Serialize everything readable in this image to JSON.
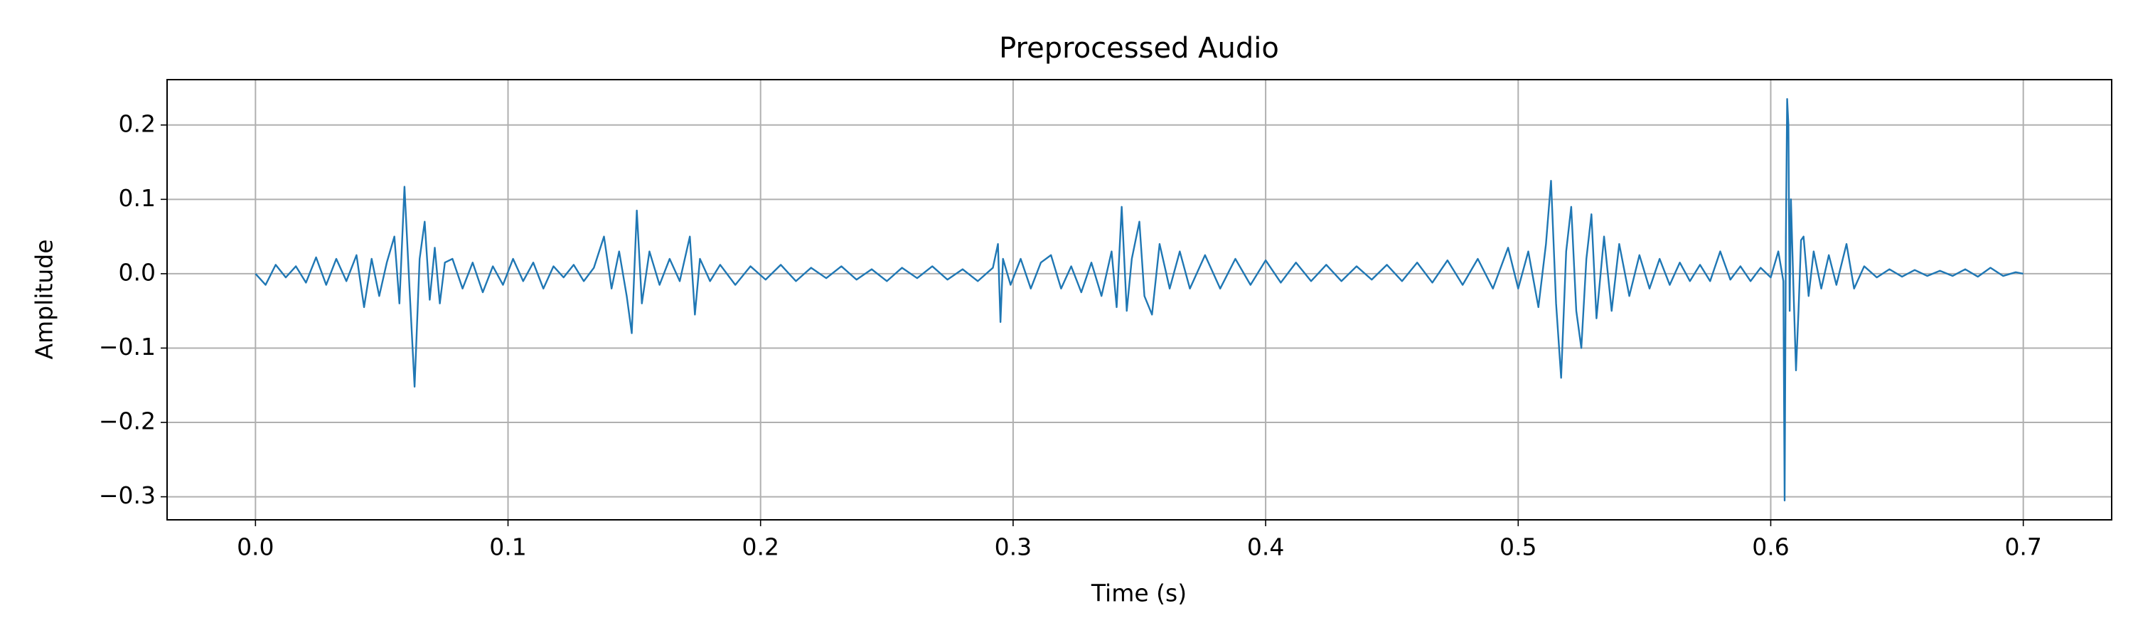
{
  "chart_data": {
    "type": "line",
    "title": "Preprocessed Audio",
    "xlabel": "Time (s)",
    "ylabel": "Amplitude",
    "grid": true,
    "xlim": [
      -0.035,
      0.735
    ],
    "ylim": [
      -0.331,
      0.261
    ],
    "xticks": [
      {
        "value": 0,
        "label": "0.0"
      },
      0.1,
      0.2,
      0.3,
      0.4,
      0.5,
      0.6,
      0.7
    ],
    "yticks": [
      {
        "value": -0.3,
        "label": "−0.3"
      },
      {
        "value": -0.2,
        "label": "−0.2"
      },
      {
        "value": -0.1,
        "label": "−0.1"
      },
      {
        "value": 0,
        "label": "0.0"
      },
      0.1,
      0.2
    ],
    "series": [
      {
        "color": "#1f77b4",
        "x": [
          0,
          0.004,
          0.008,
          0.012,
          0.016,
          0.02,
          0.024,
          0.028,
          0.032,
          0.036,
          0.04,
          0.043,
          0.046,
          0.049,
          0.052,
          0.055,
          0.057,
          0.059,
          0.061,
          0.063,
          0.065,
          0.067,
          0.069,
          0.071,
          0.073,
          0.075,
          0.078,
          0.082,
          0.086,
          0.09,
          0.094,
          0.098,
          0.102,
          0.106,
          0.11,
          0.114,
          0.118,
          0.122,
          0.126,
          0.13,
          0.134,
          0.138,
          0.141,
          0.144,
          0.147,
          0.149,
          0.151,
          0.153,
          0.156,
          0.16,
          0.164,
          0.168,
          0.172,
          0.174,
          0.176,
          0.18,
          0.184,
          0.19,
          0.196,
          0.202,
          0.208,
          0.214,
          0.22,
          0.226,
          0.232,
          0.238,
          0.244,
          0.25,
          0.256,
          0.262,
          0.268,
          0.274,
          0.28,
          0.286,
          0.292,
          0.294,
          0.295,
          0.296,
          0.299,
          0.303,
          0.307,
          0.311,
          0.315,
          0.319,
          0.323,
          0.327,
          0.331,
          0.335,
          0.339,
          0.341,
          0.343,
          0.345,
          0.347,
          0.35,
          0.352,
          0.355,
          0.358,
          0.362,
          0.366,
          0.37,
          0.376,
          0.382,
          0.388,
          0.394,
          0.4,
          0.406,
          0.412,
          0.418,
          0.424,
          0.43,
          0.436,
          0.442,
          0.448,
          0.454,
          0.46,
          0.466,
          0.472,
          0.478,
          0.484,
          0.49,
          0.496,
          0.5,
          0.504,
          0.508,
          0.511,
          0.513,
          0.515,
          0.517,
          0.519,
          0.521,
          0.523,
          0.525,
          0.527,
          0.529,
          0.531,
          0.534,
          0.537,
          0.54,
          0.544,
          0.548,
          0.552,
          0.556,
          0.56,
          0.564,
          0.568,
          0.572,
          0.576,
          0.58,
          0.584,
          0.588,
          0.592,
          0.596,
          0.6,
          0.603,
          0.605,
          0.6055,
          0.606,
          0.6065,
          0.607,
          0.6075,
          0.608,
          0.609,
          0.61,
          0.611,
          0.612,
          0.613,
          0.615,
          0.617,
          0.62,
          0.623,
          0.626,
          0.63,
          0.633,
          0.637,
          0.642,
          0.647,
          0.652,
          0.657,
          0.662,
          0.667,
          0.672,
          0.677,
          0.682,
          0.687,
          0.692,
          0.697,
          0.7
        ],
        "values": [
          0,
          -0.015,
          0.012,
          -0.005,
          0.01,
          -0.012,
          0.022,
          -0.015,
          0.02,
          -0.01,
          0.025,
          -0.045,
          0.02,
          -0.03,
          0.015,
          0.05,
          -0.04,
          0.117,
          -0.02,
          -0.152,
          0.02,
          0.07,
          -0.035,
          0.035,
          -0.04,
          0.015,
          0.02,
          -0.02,
          0.015,
          -0.025,
          0.01,
          -0.015,
          0.02,
          -0.01,
          0.015,
          -0.02,
          0.01,
          -0.005,
          0.012,
          -0.01,
          0.008,
          0.05,
          -0.02,
          0.03,
          -0.03,
          -0.08,
          0.085,
          -0.04,
          0.03,
          -0.015,
          0.02,
          -0.01,
          0.05,
          -0.055,
          0.02,
          -0.01,
          0.012,
          -0.015,
          0.01,
          -0.008,
          0.012,
          -0.01,
          0.008,
          -0.006,
          0.01,
          -0.008,
          0.006,
          -0.01,
          0.008,
          -0.006,
          0.01,
          -0.008,
          0.006,
          -0.01,
          0.008,
          0.04,
          -0.065,
          0.02,
          -0.015,
          0.02,
          -0.02,
          0.015,
          0.025,
          -0.02,
          0.01,
          -0.025,
          0.015,
          -0.03,
          0.03,
          -0.045,
          0.09,
          -0.05,
          0.02,
          0.07,
          -0.03,
          -0.055,
          0.04,
          -0.02,
          0.03,
          -0.02,
          0.025,
          -0.02,
          0.02,
          -0.015,
          0.018,
          -0.012,
          0.015,
          -0.01,
          0.012,
          -0.01,
          0.01,
          -0.008,
          0.012,
          -0.01,
          0.015,
          -0.012,
          0.018,
          -0.015,
          0.02,
          -0.02,
          0.035,
          -0.02,
          0.03,
          -0.045,
          0.04,
          0.125,
          -0.04,
          -0.14,
          0.03,
          0.09,
          -0.05,
          -0.1,
          0.02,
          0.08,
          -0.06,
          0.05,
          -0.05,
          0.04,
          -0.03,
          0.025,
          -0.02,
          0.02,
          -0.015,
          0.015,
          -0.01,
          0.012,
          -0.01,
          0.03,
          -0.008,
          0.01,
          -0.01,
          0.008,
          -0.005,
          0.03,
          -0.01,
          -0.305,
          0.05,
          0.235,
          0.2,
          -0.05,
          0.1,
          -0.02,
          -0.13,
          -0.05,
          0.045,
          0.05,
          -0.03,
          0.03,
          -0.02,
          0.025,
          -0.015,
          0.04,
          -0.02,
          0.01,
          -0.005,
          0.006,
          -0.004,
          0.005,
          -0.003,
          0.004,
          -0.003,
          0.006,
          -0.004,
          0.008,
          -0.003,
          0.002,
          0
        ]
      }
    ]
  }
}
